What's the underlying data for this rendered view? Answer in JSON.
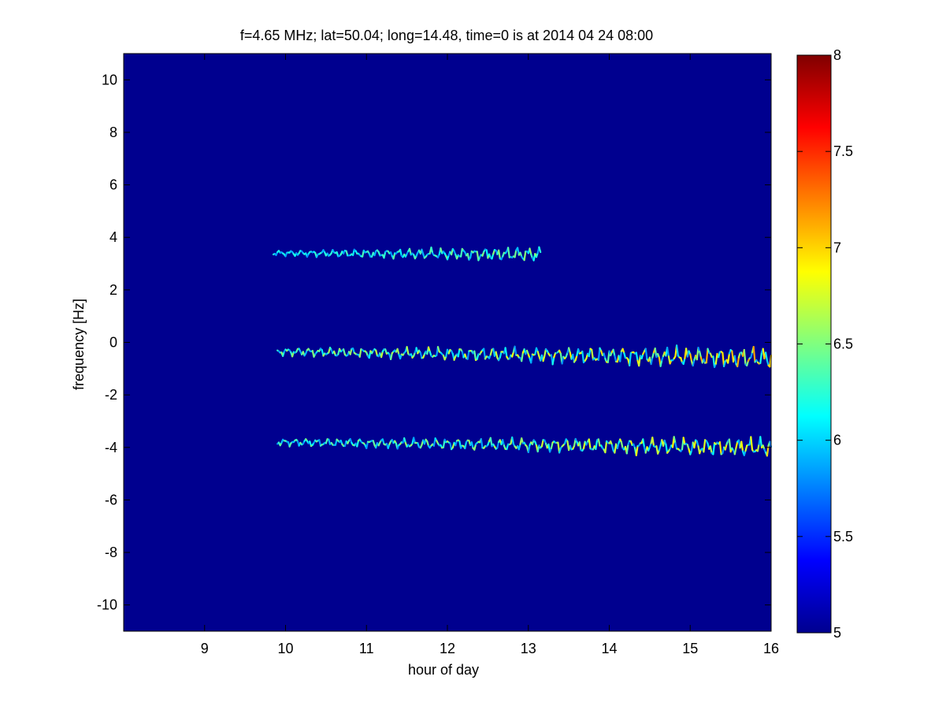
{
  "chart_data": {
    "type": "heatmap",
    "title": "f=4.65 MHz;  lat=50.04; long=14.48, time=0 is at 2014 04 24 08:00",
    "xlabel": "hour of day",
    "ylabel": "frequency [Hz]",
    "xlim": [
      8,
      16
    ],
    "ylim": [
      -11,
      11
    ],
    "xticks": [
      9,
      10,
      11,
      12,
      13,
      14,
      15,
      16
    ],
    "yticks": [
      10,
      8,
      6,
      4,
      2,
      0,
      -2,
      -4,
      -6,
      -8,
      -10
    ],
    "colorbar": {
      "range": [
        5,
        8
      ],
      "ticks": [
        "8",
        "7.5",
        "7",
        "6.5",
        "6",
        "5.5",
        "5"
      ],
      "colormap": "jet"
    },
    "background_color": "#00008f",
    "traces": [
      {
        "start_hour": 9.85,
        "end_hour": 13.15,
        "frequency_hz": 3.4,
        "drift": -0.05,
        "wiggle_hz": 0.06,
        "intensity": [
          5.8,
          6.6
        ]
      },
      {
        "start_hour": 9.9,
        "end_hour": 16.0,
        "frequency_hz": -0.35,
        "drift": -0.25,
        "wiggle_hz": 0.09,
        "intensity": [
          5.8,
          7.2
        ]
      },
      {
        "start_hour": 9.9,
        "end_hour": 16.0,
        "frequency_hz": -3.8,
        "drift": -0.2,
        "wiggle_hz": 0.08,
        "intensity": [
          5.8,
          7.0
        ]
      }
    ]
  }
}
